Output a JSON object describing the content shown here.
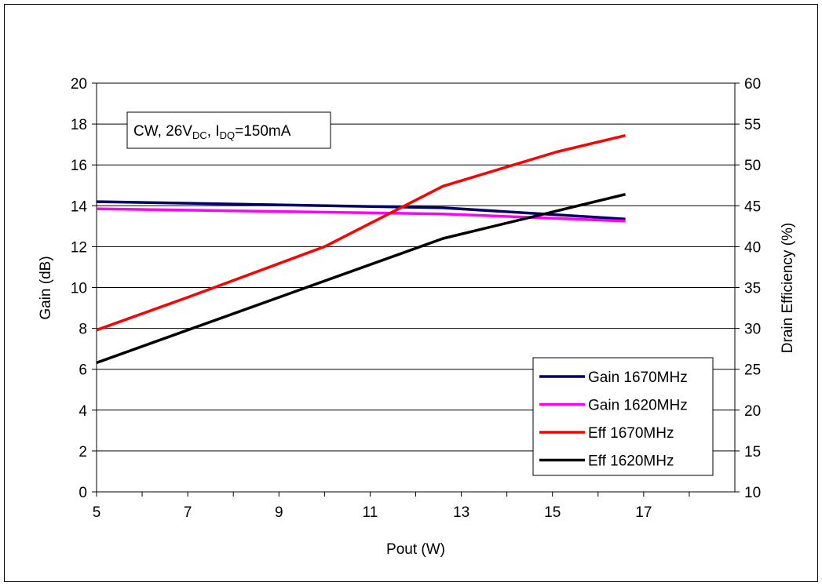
{
  "chart_data": {
    "type": "line",
    "xlabel": "Pout (W)",
    "ylabel": "Gain (dB)",
    "y2label": "Drain Efficiency (%)",
    "xlim": [
      5,
      19
    ],
    "ylim": [
      0,
      20
    ],
    "y2lim": [
      10,
      60
    ],
    "x_ticks": [
      5,
      7,
      9,
      11,
      13,
      15,
      17
    ],
    "y_ticks": [
      0,
      2,
      4,
      6,
      8,
      10,
      12,
      14,
      16,
      18,
      20
    ],
    "y2_ticks": [
      10,
      15,
      20,
      25,
      30,
      35,
      40,
      45,
      50,
      55,
      60
    ],
    "grid": true,
    "annotation": {
      "prefix": "CW, 26V",
      "sub1": "DC",
      "mid": ", I",
      "sub2": "DQ",
      "suffix": "=150mA"
    },
    "legend_position": "bottom-right",
    "series": [
      {
        "name": "Gain 1670MHz",
        "axis": "left",
        "color": "#000066",
        "x": [
          5,
          12.6,
          16.6
        ],
        "y": [
          14.2,
          13.9,
          13.35
        ]
      },
      {
        "name": "Gain 1620MHz",
        "axis": "left",
        "color": "#ff00ff",
        "x": [
          5,
          12.6,
          16.6
        ],
        "y": [
          13.85,
          13.6,
          13.25
        ]
      },
      {
        "name": "Eff 1670MHz",
        "axis": "right",
        "color": "#ff0000",
        "x": [
          5,
          7,
          10,
          12.6,
          15.1,
          16.6
        ],
        "y": [
          29.8,
          33.8,
          40.0,
          47.4,
          51.6,
          53.6
        ]
      },
      {
        "name": "Eff 1620MHz",
        "axis": "right",
        "color": "#000000",
        "x": [
          5,
          12.6,
          16.6
        ],
        "y": [
          25.8,
          41.0,
          46.4
        ]
      }
    ]
  }
}
